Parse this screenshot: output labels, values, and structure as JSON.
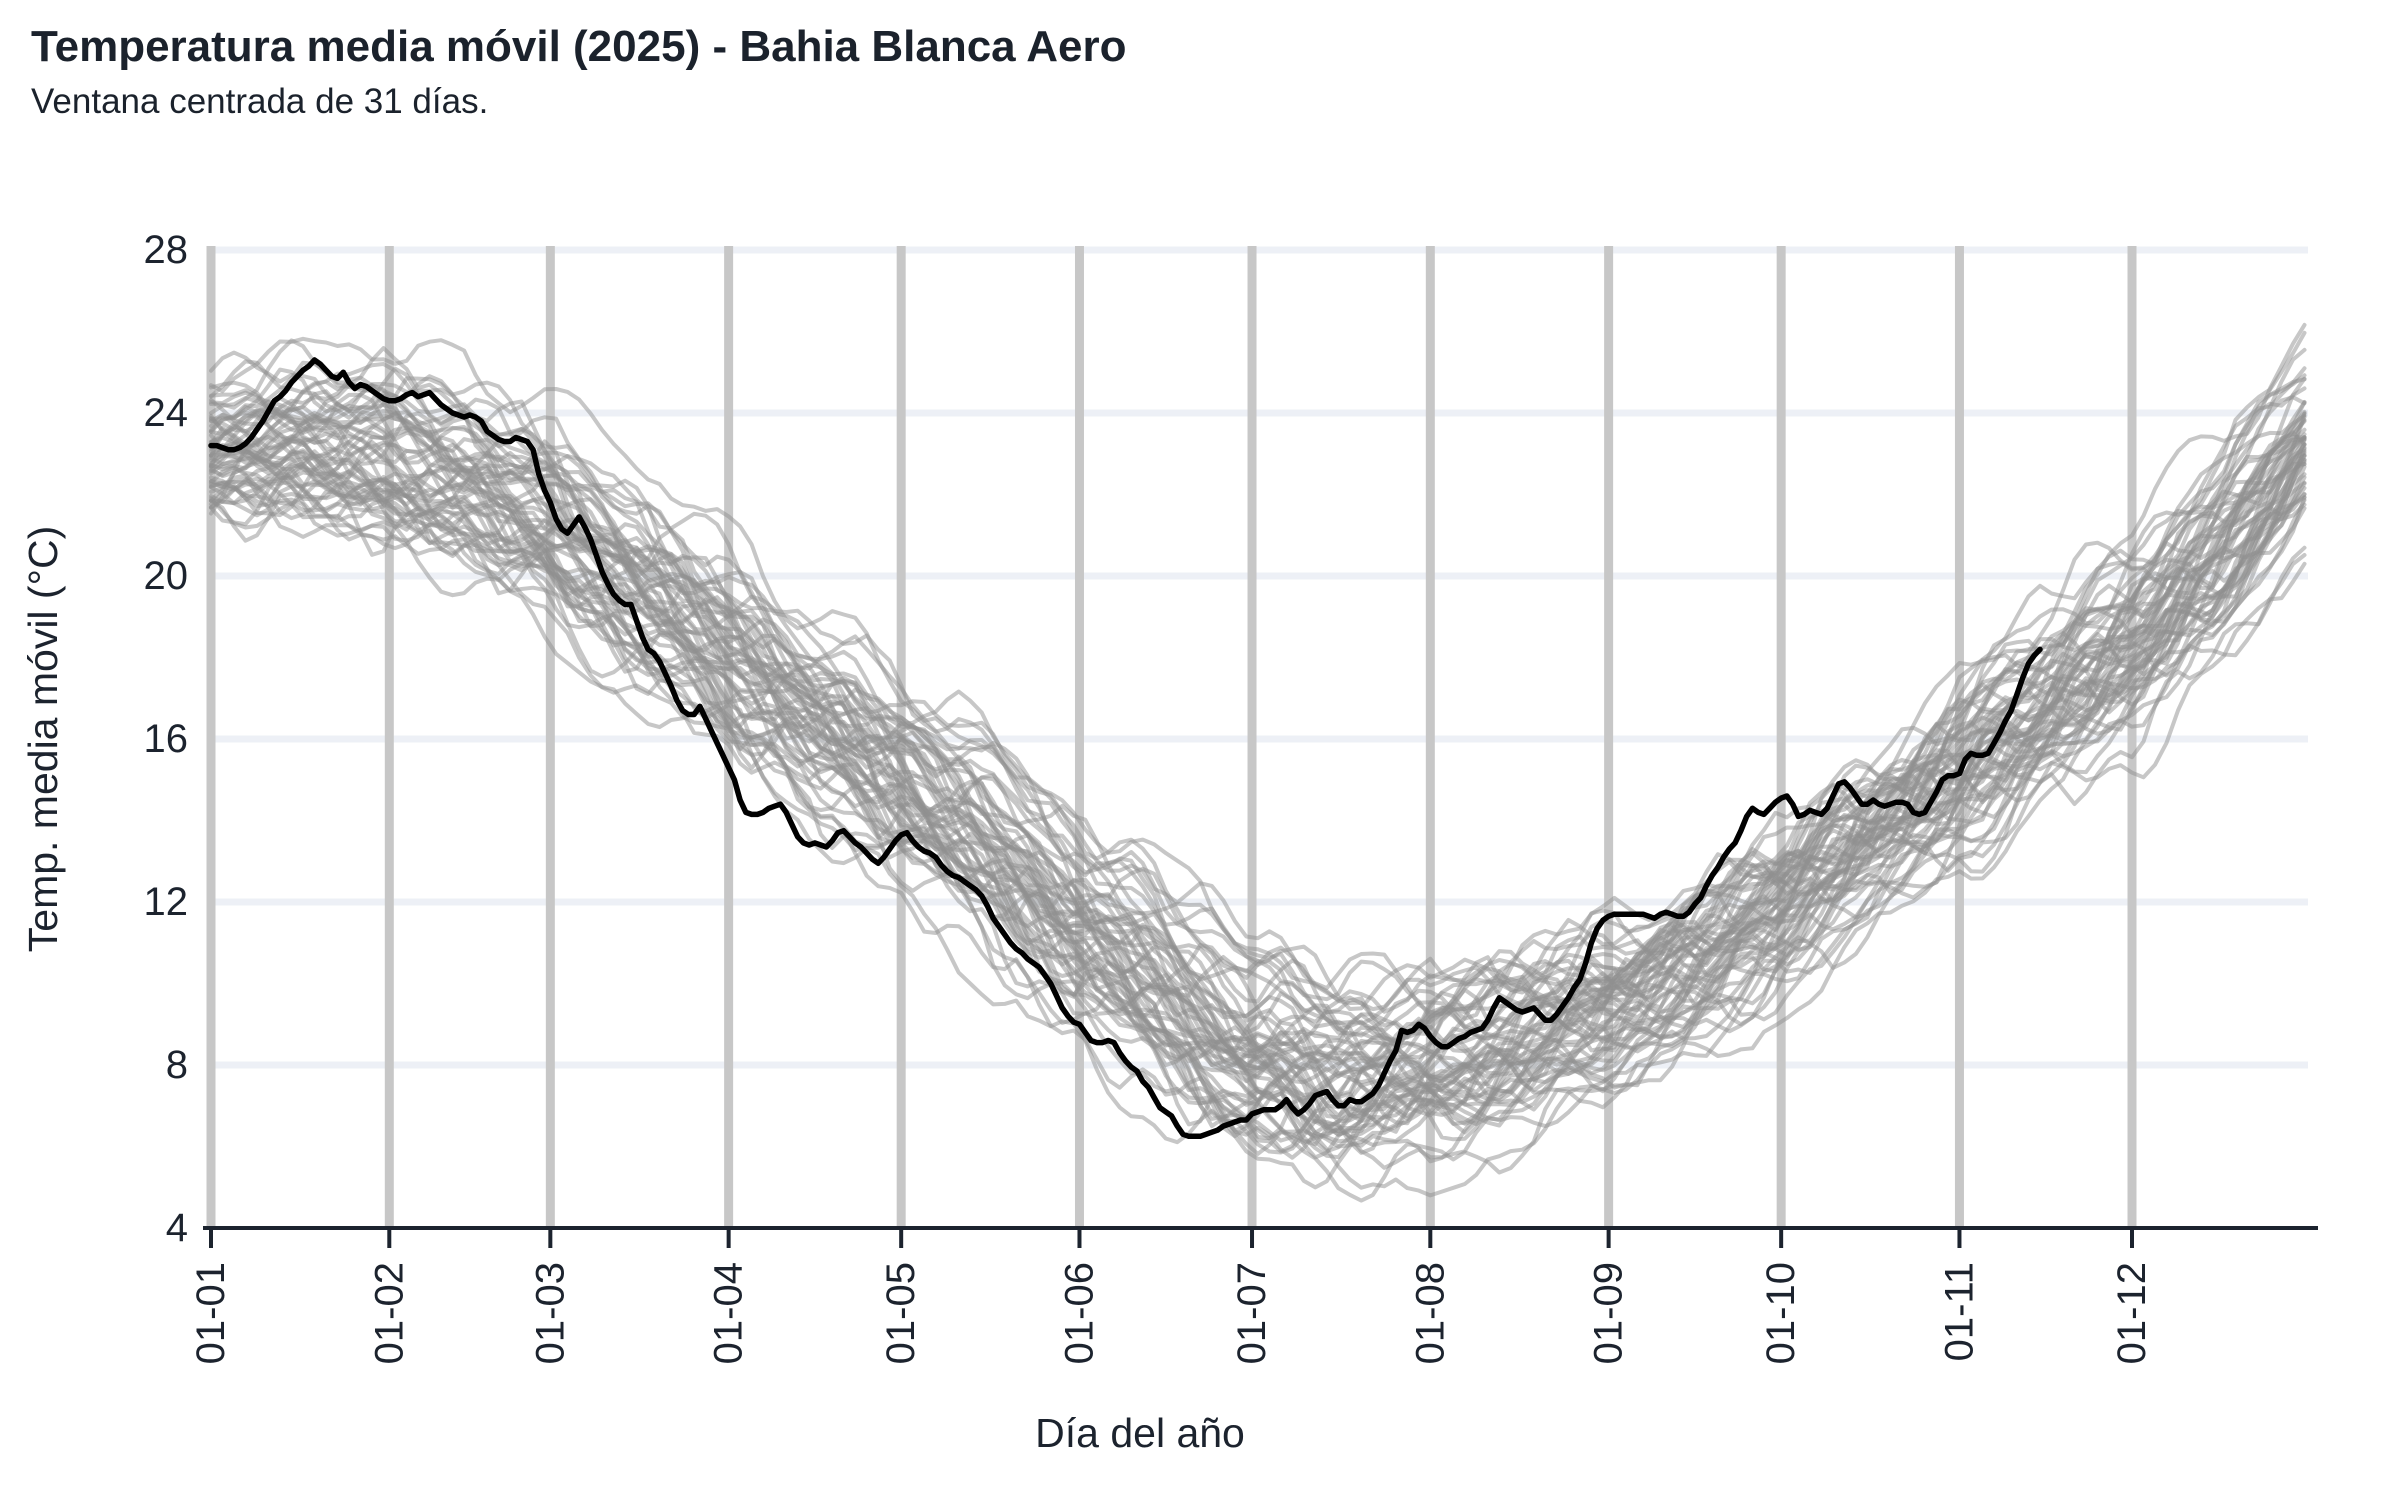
{
  "chart_data": {
    "type": "line",
    "title": "Temperatura media móvil (2025) - Bahia Blanca Aero",
    "subtitle": "Ventana centrada de 31 días.",
    "xlabel": "Día del año",
    "ylabel": "Temp. media móvil (°C)",
    "ylim": [
      4,
      28
    ],
    "y_ticks": [
      4,
      8,
      12,
      16,
      20,
      24,
      28
    ],
    "xlim_days": [
      0,
      364.6
    ],
    "x_tick_days": [
      0,
      31,
      59,
      90,
      120,
      151,
      181,
      212,
      243,
      273,
      304,
      334
    ],
    "x_tick_labels": [
      "01-01",
      "01-02",
      "01-03",
      "01-04",
      "01-05",
      "01-06",
      "01-07",
      "01-08",
      "01-09",
      "01-10",
      "01-11",
      "01-12"
    ],
    "grid": {
      "vertical_months": true,
      "horizontal_bands": true
    },
    "legend": "none",
    "series": [
      {
        "name": "años históricos",
        "role": "ensemble-background",
        "color": "#8f8f8f",
        "opacity": 0.5,
        "count": 58,
        "seed": 11,
        "envelope": {
          "days": [
            0,
            15,
            31,
            45,
            59,
            75,
            90,
            105,
            120,
            135,
            151,
            166,
            181,
            196,
            212,
            227,
            243,
            258,
            273,
            288,
            304,
            319,
            334,
            349,
            364
          ],
          "min": [
            20.4,
            20.6,
            20.0,
            19.4,
            18.2,
            16.4,
            14.5,
            13.0,
            11.6,
            9.6,
            7.8,
            6.0,
            4.6,
            4.3,
            4.8,
            5.5,
            6.3,
            7.3,
            8.5,
            10.0,
            11.5,
            13.0,
            14.6,
            17.0,
            20.3
          ],
          "max": [
            25.7,
            26.2,
            26.3,
            25.5,
            24.8,
            23.3,
            21.5,
            19.8,
            18.3,
            16.6,
            14.8,
            13.2,
            11.8,
            11.2,
            11.5,
            12.0,
            12.8,
            13.9,
            15.3,
            16.9,
            18.7,
            20.3,
            22.0,
            24.0,
            26.3
          ]
        }
      },
      {
        "name": "2025",
        "role": "highlight",
        "color": "#000000",
        "start_day": 0,
        "values": [
          23.2,
          23.2,
          23.15,
          23.1,
          23.1,
          23.15,
          23.25,
          23.4,
          23.6,
          23.8,
          24.05,
          24.3,
          24.4,
          24.55,
          24.75,
          24.9,
          25.05,
          25.15,
          25.3,
          25.2,
          25.05,
          24.9,
          24.85,
          25.0,
          24.75,
          24.6,
          24.7,
          24.65,
          24.55,
          24.45,
          24.35,
          24.3,
          24.3,
          24.35,
          24.45,
          24.5,
          24.4,
          24.45,
          24.5,
          24.35,
          24.2,
          24.1,
          24.0,
          23.95,
          23.9,
          23.95,
          23.9,
          23.8,
          23.55,
          23.45,
          23.35,
          23.3,
          23.3,
          23.4,
          23.35,
          23.3,
          23.1,
          22.5,
          22.1,
          21.8,
          21.4,
          21.15,
          21.05,
          21.25,
          21.45,
          21.2,
          20.9,
          20.5,
          20.1,
          19.8,
          19.55,
          19.4,
          19.3,
          19.3,
          18.9,
          18.5,
          18.2,
          18.1,
          17.9,
          17.6,
          17.3,
          16.95,
          16.7,
          16.6,
          16.6,
          16.8,
          16.5,
          16.2,
          15.9,
          15.6,
          15.3,
          15.0,
          14.5,
          14.2,
          14.15,
          14.15,
          14.2,
          14.3,
          14.35,
          14.4,
          14.2,
          13.9,
          13.6,
          13.45,
          13.4,
          13.45,
          13.4,
          13.35,
          13.5,
          13.7,
          13.75,
          13.6,
          13.45,
          13.35,
          13.2,
          13.05,
          12.95,
          13.1,
          13.3,
          13.5,
          13.65,
          13.7,
          13.5,
          13.35,
          13.25,
          13.2,
          13.1,
          12.9,
          12.75,
          12.65,
          12.6,
          12.5,
          12.4,
          12.3,
          12.15,
          11.9,
          11.6,
          11.4,
          11.2,
          11.0,
          10.85,
          10.75,
          10.6,
          10.5,
          10.4,
          10.2,
          10.0,
          9.7,
          9.4,
          9.2,
          9.05,
          9.0,
          8.8,
          8.6,
          8.55,
          8.55,
          8.6,
          8.55,
          8.3,
          8.1,
          7.95,
          7.85,
          7.6,
          7.45,
          7.2,
          6.95,
          6.85,
          6.75,
          6.5,
          6.3,
          6.25,
          6.25,
          6.25,
          6.3,
          6.35,
          6.4,
          6.5,
          6.55,
          6.6,
          6.65,
          6.65,
          6.8,
          6.85,
          6.9,
          6.9,
          6.9,
          7.0,
          7.15,
          6.95,
          6.8,
          6.9,
          7.05,
          7.25,
          7.3,
          7.35,
          7.15,
          7.0,
          7.0,
          7.15,
          7.1,
          7.1,
          7.2,
          7.3,
          7.5,
          7.8,
          8.1,
          8.35,
          8.85,
          8.8,
          8.85,
          9.0,
          8.9,
          8.7,
          8.55,
          8.45,
          8.45,
          8.55,
          8.65,
          8.7,
          8.8,
          8.85,
          8.9,
          9.1,
          9.4,
          9.65,
          9.55,
          9.45,
          9.35,
          9.3,
          9.35,
          9.4,
          9.25,
          9.1,
          9.1,
          9.25,
          9.45,
          9.65,
          9.9,
          10.1,
          10.5,
          11.0,
          11.35,
          11.55,
          11.65,
          11.7,
          11.7,
          11.7,
          11.7,
          11.7,
          11.7,
          11.65,
          11.6,
          11.7,
          11.75,
          11.7,
          11.65,
          11.65,
          11.75,
          11.95,
          12.1,
          12.4,
          12.65,
          12.85,
          13.1,
          13.3,
          13.45,
          13.75,
          14.1,
          14.3,
          14.2,
          14.15,
          14.3,
          14.45,
          14.55,
          14.6,
          14.4,
          14.1,
          14.15,
          14.25,
          14.2,
          14.15,
          14.3,
          14.6,
          14.9,
          14.95,
          14.8,
          14.6,
          14.4,
          14.4,
          14.5,
          14.4,
          14.35,
          14.4,
          14.45,
          14.45,
          14.4,
          14.2,
          14.15,
          14.2,
          14.45,
          14.7,
          15.0,
          15.1,
          15.1,
          15.15,
          15.5,
          15.65,
          15.6,
          15.6,
          15.65,
          15.9,
          16.15,
          16.45,
          16.7,
          17.1,
          17.5,
          17.85,
          18.05,
          18.2
        ]
      }
    ]
  },
  "colors": {
    "background": "#ffffff",
    "text": "#1c232e",
    "title_text": "#1b222c",
    "month_gridline": "#c7c7c7",
    "horizontal_band": "#edf0f6",
    "axis_line": "#1c232e",
    "historical_line": "#8f8f8f",
    "highlight_line": "#000000"
  }
}
